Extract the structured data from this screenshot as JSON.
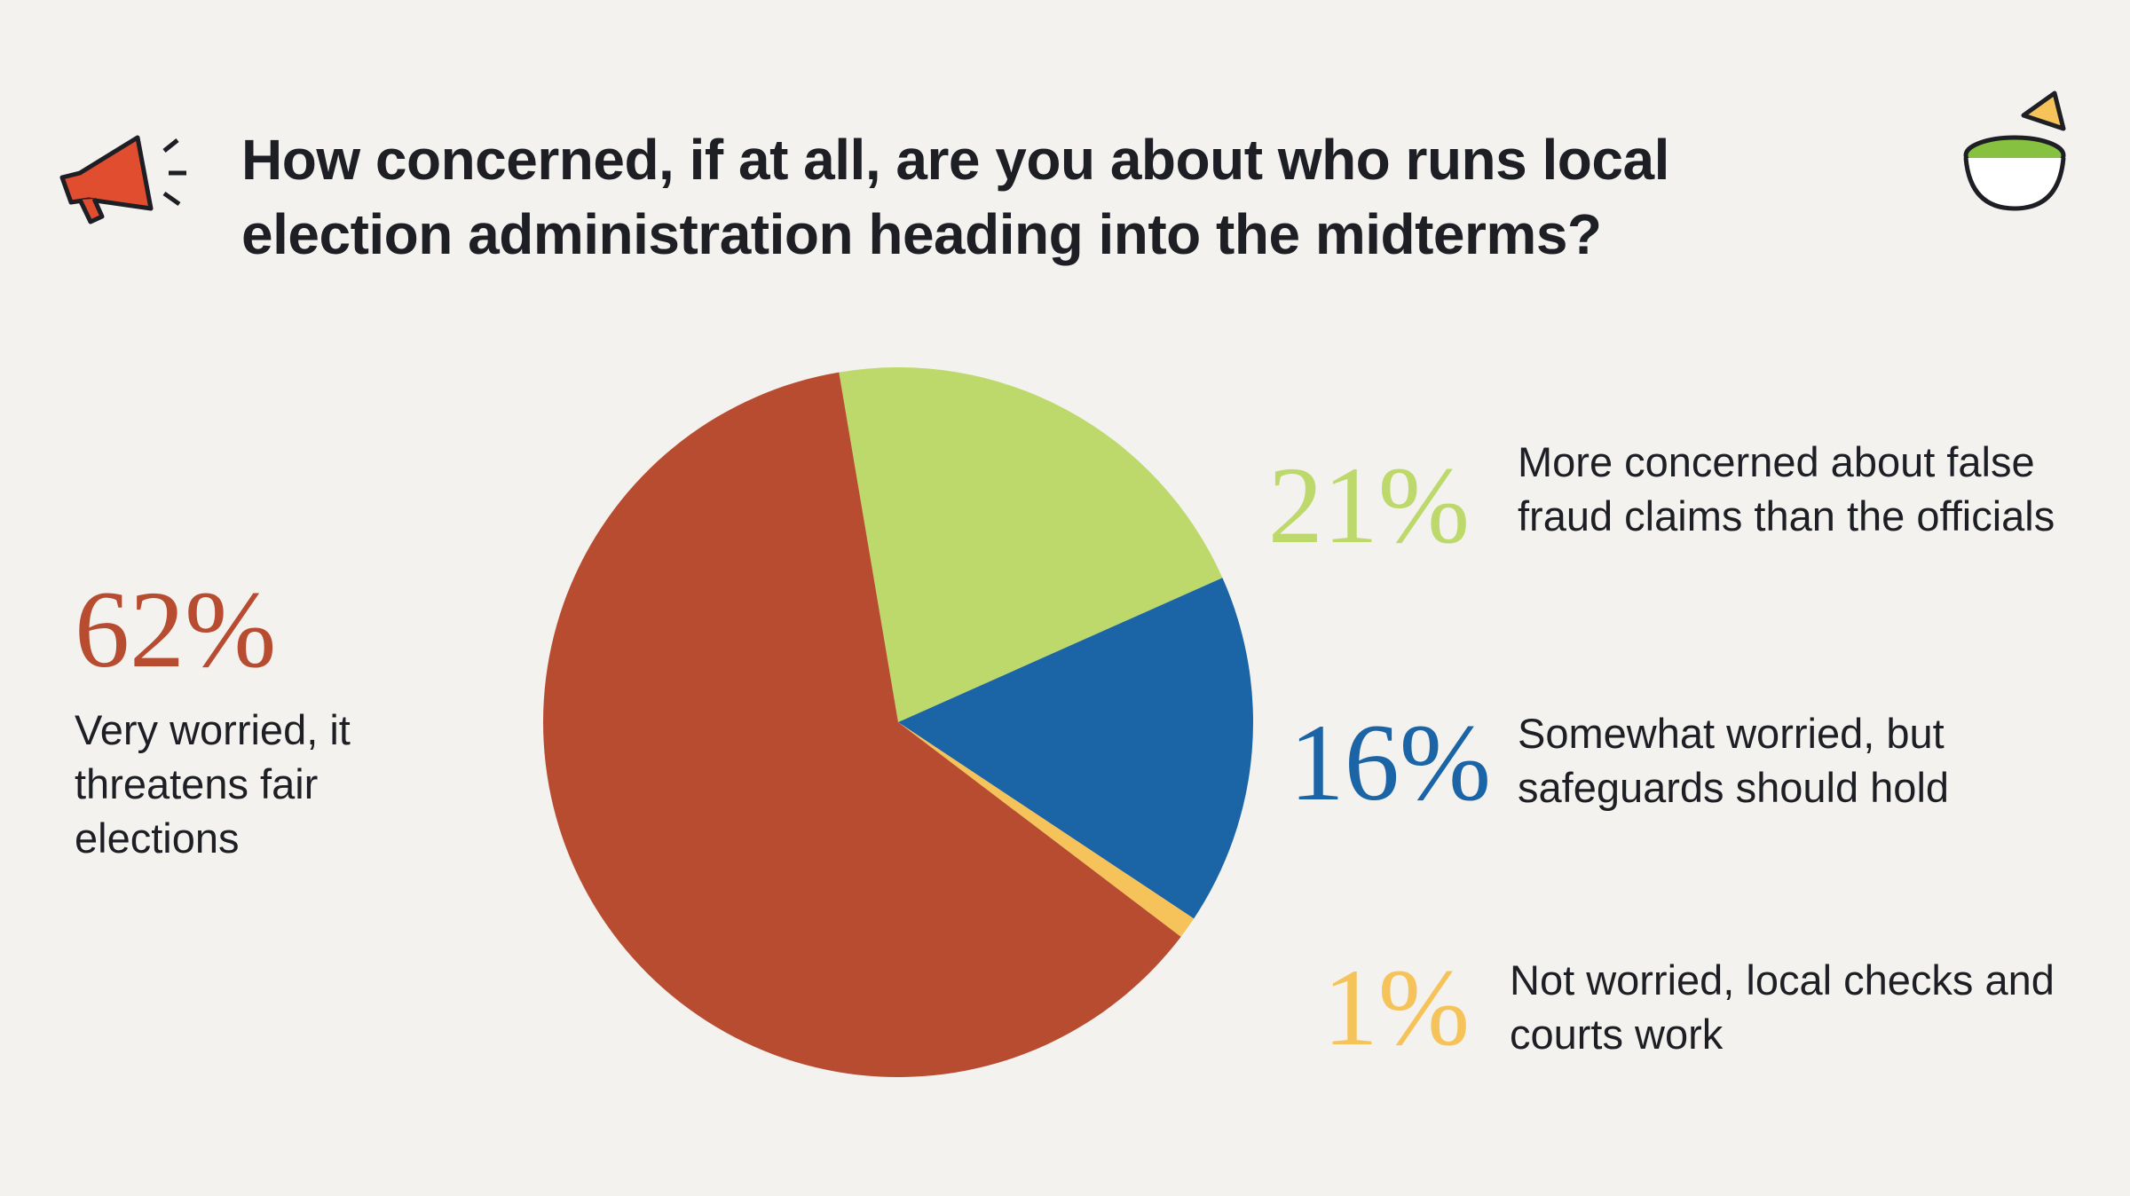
{
  "chart_data": {
    "type": "pie",
    "title": "How concerned, if at all, are you about who runs local election administration heading into the midterms?",
    "categories": [
      "Very worried, it threatens fair elections",
      "More concerned about false fraud claims than the officials",
      "Somewhat worried, but safeguards should hold",
      "Not worried, local checks and courts work"
    ],
    "values": [
      62,
      21,
      16,
      1
    ],
    "value_labels": [
      "62%",
      "21%",
      "16%",
      "1%"
    ],
    "colors": [
      "#b84c31",
      "#bdd96b",
      "#1b64a5",
      "#f6c35a"
    ]
  }
}
